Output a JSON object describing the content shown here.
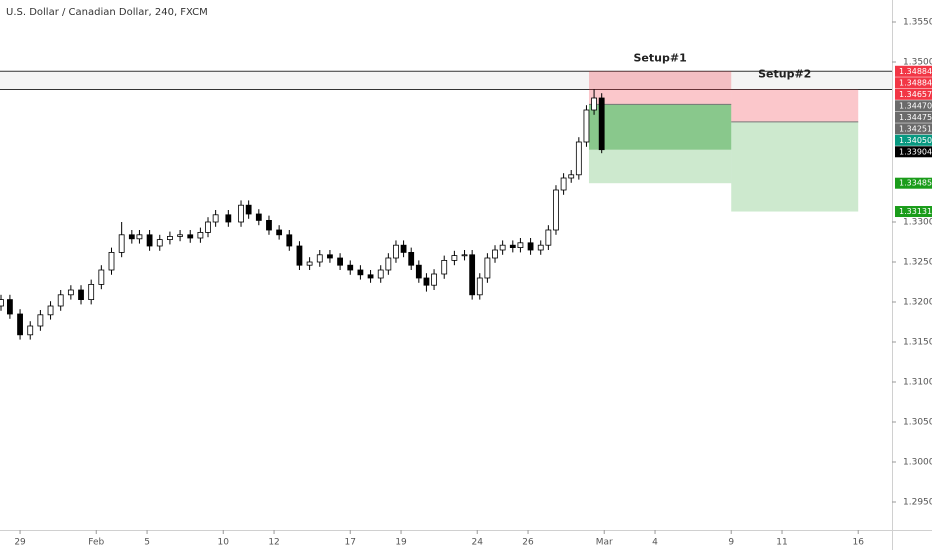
{
  "chart_data": {
    "type": "candlestick",
    "title": "U.S. Dollar / Canadian Dollar, 240, FXCM",
    "xlim": [
      -0.79,
      34.33
    ],
    "ylim": [
      1.2915,
      1.35775
    ],
    "xticks": [
      {
        "value": 0,
        "label": "29"
      },
      {
        "value": 3,
        "label": "Feb"
      },
      {
        "value": 5,
        "label": "5"
      },
      {
        "value": 8,
        "label": "10"
      },
      {
        "value": 10,
        "label": "12"
      },
      {
        "value": 13,
        "label": "17"
      },
      {
        "value": 15,
        "label": "19"
      },
      {
        "value": 18,
        "label": "24"
      },
      {
        "value": 20,
        "label": "26"
      },
      {
        "value": 23,
        "label": "Mar"
      },
      {
        "value": 25,
        "label": "4"
      },
      {
        "value": 28,
        "label": "9"
      },
      {
        "value": 30,
        "label": "11"
      },
      {
        "value": 33,
        "label": "16"
      }
    ],
    "yticks": [
      {
        "value": 1.355,
        "label": "1.35500"
      },
      {
        "value": 1.35,
        "label": "1.35000"
      },
      {
        "value": 1.33,
        "label": "1.33000"
      },
      {
        "value": 1.325,
        "label": "1.32500"
      },
      {
        "value": 1.32,
        "label": "1.32000"
      },
      {
        "value": 1.315,
        "label": "1.31500"
      },
      {
        "value": 1.31,
        "label": "1.31000"
      },
      {
        "value": 1.305,
        "label": "1.30500"
      },
      {
        "value": 1.3,
        "label": "1.30000"
      },
      {
        "value": 1.295,
        "label": "1.29500"
      }
    ],
    "x": [
      -0.75,
      -0.4,
      0,
      0.4,
      0.8,
      1.2,
      1.6,
      2.0,
      2.4,
      2.8,
      3.2,
      3.6,
      4.0,
      4.4,
      4.7,
      5.1,
      5.5,
      5.9,
      6.3,
      6.7,
      7.1,
      7.4,
      7.7,
      8.2,
      8.7,
      9.0,
      9.4,
      9.8,
      10.2,
      10.6,
      11.0,
      11.4,
      11.8,
      12.2,
      12.6,
      13.0,
      13.4,
      13.8,
      14.2,
      14.5,
      14.8,
      15.1,
      15.4,
      15.7,
      16.0,
      16.3,
      16.7,
      17.1,
      17.5,
      17.8,
      18.1,
      18.4,
      18.7,
      19.0,
      19.4,
      19.7,
      20.1,
      20.5,
      20.8,
      21.1,
      21.4,
      21.7,
      22.0,
      22.3,
      22.6,
      22.9
    ],
    "open": [
      1.3195,
      1.3203,
      1.3185,
      1.3159,
      1.317,
      1.3184,
      1.3195,
      1.3209,
      1.3215,
      1.3203,
      1.3222,
      1.324,
      1.3262,
      1.3284,
      1.3279,
      1.3284,
      1.327,
      1.3278,
      1.3282,
      1.3284,
      1.328,
      1.3287,
      1.33,
      1.3309,
      1.33,
      1.3321,
      1.331,
      1.3302,
      1.329,
      1.3284,
      1.327,
      1.3246,
      1.325,
      1.3259,
      1.3255,
      1.3246,
      1.324,
      1.3234,
      1.323,
      1.324,
      1.3255,
      1.3271,
      1.3262,
      1.3246,
      1.323,
      1.3221,
      1.3235,
      1.3252,
      1.3258,
      1.3259,
      1.3209,
      1.323,
      1.3255,
      1.3265,
      1.3271,
      1.3268,
      1.3274,
      1.3265,
      1.3271,
      1.329,
      1.334,
      1.3355,
      1.3359,
      1.34,
      1.344,
      1.3455
    ],
    "high": [
      1.3209,
      1.3209,
      1.3191,
      1.3176,
      1.319,
      1.3201,
      1.3215,
      1.3221,
      1.3221,
      1.3228,
      1.3246,
      1.3268,
      1.33,
      1.329,
      1.329,
      1.329,
      1.3284,
      1.3288,
      1.329,
      1.329,
      1.3293,
      1.3306,
      1.3315,
      1.3315,
      1.3327,
      1.3327,
      1.3316,
      1.3308,
      1.3296,
      1.329,
      1.3276,
      1.3256,
      1.3265,
      1.3265,
      1.3261,
      1.3252,
      1.3246,
      1.324,
      1.3246,
      1.3261,
      1.3277,
      1.3277,
      1.3268,
      1.3252,
      1.3236,
      1.3241,
      1.3258,
      1.3264,
      1.3265,
      1.3265,
      1.3236,
      1.3261,
      1.3271,
      1.3277,
      1.3277,
      1.328,
      1.328,
      1.3277,
      1.3296,
      1.3346,
      1.3361,
      1.3365,
      1.3406,
      1.3446,
      1.3466,
      1.3461
    ],
    "low": [
      1.3189,
      1.3179,
      1.3153,
      1.3153,
      1.3164,
      1.3178,
      1.3189,
      1.3203,
      1.3197,
      1.3197,
      1.3216,
      1.3234,
      1.3256,
      1.3273,
      1.3273,
      1.3264,
      1.3264,
      1.3272,
      1.3276,
      1.3274,
      1.3274,
      1.3281,
      1.3294,
      1.3294,
      1.3294,
      1.3304,
      1.3296,
      1.3284,
      1.3278,
      1.3264,
      1.324,
      1.324,
      1.3244,
      1.3249,
      1.324,
      1.3234,
      1.3228,
      1.3224,
      1.3224,
      1.3234,
      1.3249,
      1.3256,
      1.324,
      1.3224,
      1.3213,
      1.3215,
      1.3229,
      1.3246,
      1.3252,
      1.3203,
      1.3203,
      1.3224,
      1.3249,
      1.3259,
      1.3262,
      1.3262,
      1.3259,
      1.3259,
      1.3265,
      1.3284,
      1.3334,
      1.3349,
      1.3353,
      1.3394,
      1.3434,
      1.3386
    ],
    "close": [
      1.3203,
      1.3185,
      1.3159,
      1.317,
      1.3184,
      1.3195,
      1.3209,
      1.3215,
      1.3203,
      1.3222,
      1.324,
      1.3262,
      1.3284,
      1.3279,
      1.3284,
      1.327,
      1.3278,
      1.3282,
      1.3284,
      1.328,
      1.3287,
      1.33,
      1.3309,
      1.33,
      1.3321,
      1.331,
      1.3302,
      1.329,
      1.3284,
      1.327,
      1.3246,
      1.325,
      1.3259,
      1.3255,
      1.3246,
      1.324,
      1.3234,
      1.323,
      1.324,
      1.3255,
      1.3271,
      1.3262,
      1.3246,
      1.323,
      1.3221,
      1.3235,
      1.3252,
      1.3258,
      1.3259,
      1.3209,
      1.323,
      1.3255,
      1.3265,
      1.3271,
      1.3268,
      1.3274,
      1.3265,
      1.3271,
      1.329,
      1.334,
      1.3355,
      1.3359,
      1.34,
      1.344,
      1.3455,
      1.33904
    ],
    "horizontal_lines": [
      1.34884,
      1.34657
    ],
    "positions": [
      {
        "label": "Setup#1",
        "x": [
          22.4,
          28
        ],
        "entry": 1.3447,
        "stop": 1.34884,
        "target": 1.33485,
        "current": 1.33904
      },
      {
        "label": "Setup#2",
        "x": [
          28,
          33
        ],
        "entry": 1.34251,
        "stop": 1.34657,
        "target": 1.33131
      }
    ],
    "price_badges": [
      {
        "value": 1.34884,
        "label": "1.34884",
        "color": "#f23645"
      },
      {
        "value": 1.34884,
        "label": "1.34884",
        "color": "#f23645"
      },
      {
        "value": 1.34657,
        "label": "1.34657",
        "color": "#f23645"
      },
      {
        "value": 1.3447,
        "label": "1.34470",
        "color": "#6a6a6a"
      },
      {
        "value": 1.34475,
        "label": "1.34475",
        "color": "#6a6a6a"
      },
      {
        "value": 1.34251,
        "label": "1.34251",
        "color": "#6a6a6a"
      },
      {
        "value": 1.3405,
        "label": "1.34050",
        "color": "#089981"
      },
      {
        "value": 1.33904,
        "label": "1.33904",
        "color": "#000000"
      },
      {
        "value": 1.33485,
        "label": "1.33485",
        "color": "#1a9c1a"
      },
      {
        "value": 1.33131,
        "label": "1.33131",
        "color": "#1a9c1a"
      }
    ]
  }
}
